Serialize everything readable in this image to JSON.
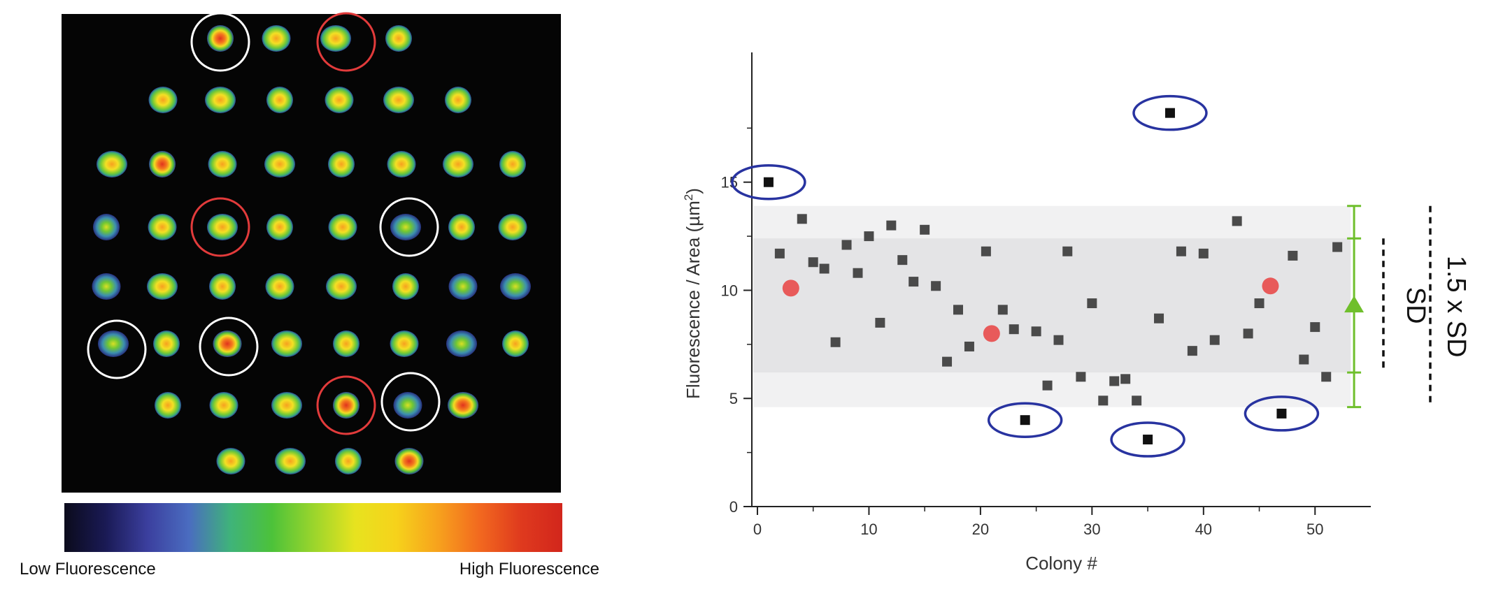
{
  "colorbar": {
    "low_label": "Low Fluorescence",
    "high_label": "High Fluorescence",
    "stops": [
      "#0b0b1c",
      "#1a1a55",
      "#3b3f9e",
      "#4a6cc0",
      "#3fb37a",
      "#4cc23a",
      "#9ad52c",
      "#e7e31f",
      "#f6d21b",
      "#f7a21d",
      "#f2691f",
      "#df3a1e",
      "#d2261c"
    ]
  },
  "colony_image": {
    "background": "#050505",
    "outline_colors": {
      "white": "#ffffff",
      "red": "#e23b3b"
    }
  },
  "chart_data": {
    "type": "scatter",
    "title": "",
    "xlabel": "Colony #",
    "ylabel": "Fluorescence / Area (µm",
    "ylabel_superscript": "2",
    "ylabel_close": ")",
    "xlim": [
      -0.5,
      55
    ],
    "ylim": [
      0,
      21
    ],
    "xticks": [
      0,
      10,
      20,
      30,
      40,
      50
    ],
    "yticks": [
      0,
      5,
      10,
      15
    ],
    "bands": [
      {
        "name": "1.5 x SD",
        "y0": 4.6,
        "y1": 13.9,
        "color": "#f1f1f2"
      },
      {
        "name": "SD",
        "y0": 6.2,
        "y1": 12.4,
        "color": "#e4e4e6"
      }
    ],
    "band_labels": {
      "sd": "SD",
      "sd15": "1.5 x SD"
    },
    "mean_marker": {
      "x": 53.5,
      "y": 9.3,
      "color": "#6fbf2c"
    },
    "series": [
      {
        "marker": "square",
        "color": "#4a4a4a",
        "points": [
          [
            2,
            11.7
          ],
          [
            4,
            13.3
          ],
          [
            5,
            11.3
          ],
          [
            6,
            11.0
          ],
          [
            7,
            7.6
          ],
          [
            8,
            12.1
          ],
          [
            9,
            10.8
          ],
          [
            10,
            12.5
          ],
          [
            11,
            8.5
          ],
          [
            12,
            13.0
          ],
          [
            13,
            11.4
          ],
          [
            14,
            10.4
          ],
          [
            15,
            12.8
          ],
          [
            16,
            10.2
          ],
          [
            17,
            6.7
          ],
          [
            18,
            9.1
          ],
          [
            19,
            7.4
          ],
          [
            20.5,
            11.8
          ],
          [
            22,
            9.1
          ],
          [
            23,
            8.2
          ],
          [
            25,
            8.1
          ],
          [
            26,
            5.6
          ],
          [
            27,
            7.7
          ],
          [
            27.8,
            11.8
          ],
          [
            29,
            6.0
          ],
          [
            30,
            9.4
          ],
          [
            31,
            4.9
          ],
          [
            32,
            5.8
          ],
          [
            33,
            5.9
          ],
          [
            34,
            4.9
          ],
          [
            36,
            8.7
          ],
          [
            38,
            11.8
          ],
          [
            39,
            7.2
          ],
          [
            40,
            11.7
          ],
          [
            41,
            7.7
          ],
          [
            43,
            13.2
          ],
          [
            44,
            8.0
          ],
          [
            45,
            9.4
          ],
          [
            48,
            11.6
          ],
          [
            49,
            6.8
          ],
          [
            50,
            8.3
          ],
          [
            51,
            6.0
          ],
          [
            52,
            12.0
          ]
        ]
      },
      {
        "marker": "square-circled",
        "color": "#111111",
        "ring_color": "#2833a0",
        "points": [
          [
            1,
            15.0
          ],
          [
            37,
            18.2
          ],
          [
            24,
            4.0
          ],
          [
            35,
            3.1
          ],
          [
            47,
            4.3
          ]
        ]
      },
      {
        "marker": "circle",
        "color": "#e85a5a",
        "points": [
          [
            3,
            10.1
          ],
          [
            21,
            8.0
          ],
          [
            46,
            10.2
          ]
        ]
      }
    ]
  }
}
